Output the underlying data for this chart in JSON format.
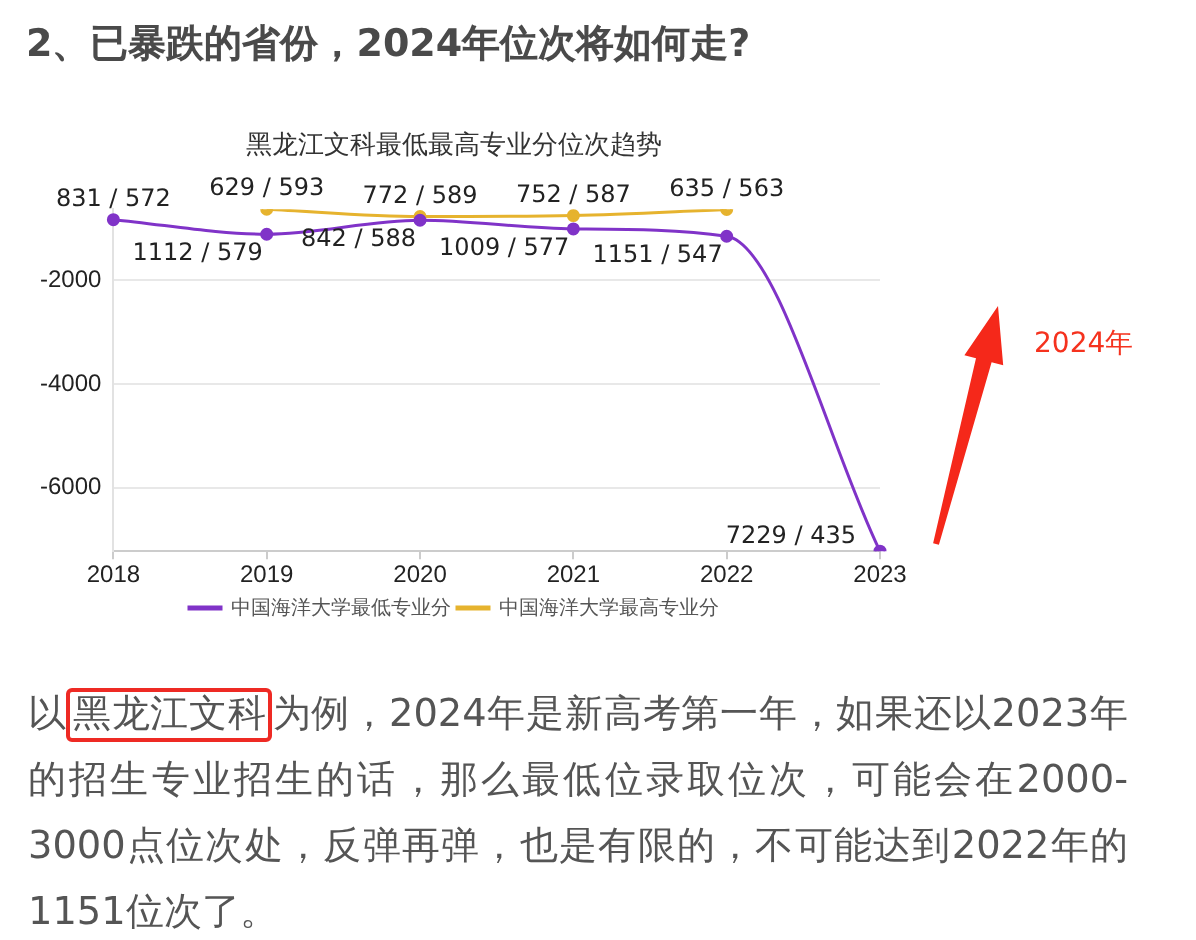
{
  "chart_data": {
    "type": "line",
    "title": "黑龙江文科最低最高专业分位次趋势",
    "categories": [
      "2018",
      "2019",
      "2020",
      "2021",
      "2022",
      "2023"
    ],
    "series": [
      {
        "name": "中国海洋大学最低专业分",
        "color": "#8033c8",
        "values": [
          -831,
          -1112,
          -842,
          -1009,
          -1151,
          -7229
        ]
      },
      {
        "name": "中国海洋大学最高专业分",
        "color": "#e6b32e",
        "values": [
          null,
          -629,
          -772,
          -752,
          -635,
          null
        ]
      }
    ],
    "ylim": [
      -7229,
      -629
    ],
    "yticks": [
      -2000,
      -4000,
      -6000
    ],
    "grid": "y",
    "legend": "bottom",
    "marker": "circle",
    "annotations": [
      "2、已暴跌的省份，2024年位次将如何走?",
      "2024年",
      "以黑龙江文科为例，2024年是新高考第一年，如果还以2023年的招生专业招生的话，那么最低位录取位次，可能会在2000-3000点位次处，反弹再弹，也是有限的，不可能达到2022年的1151位次了。",
      {
        "text": "831 / 572",
        "x": "2018",
        "y": -831
      },
      {
        "text": "1112 / 579",
        "x": "2019",
        "y": -1112
      },
      {
        "text": "842 / 588",
        "x": "2020",
        "y": -842
      },
      {
        "text": "1009 / 577",
        "x": "2021",
        "y": -1009
      },
      {
        "text": "1151 / 547",
        "x": "2022",
        "y": -1151
      },
      {
        "text": "7229 / 435",
        "x": "2023",
        "y": -7229
      },
      {
        "text": "629 / 593",
        "x": "2019",
        "y": -629
      },
      {
        "text": "772 / 589",
        "x": "2020",
        "y": -772
      },
      {
        "text": "752 / 587",
        "x": "2021",
        "y": -752
      },
      {
        "text": "635 / 563",
        "x": "2022",
        "y": -635
      }
    ]
  }
}
